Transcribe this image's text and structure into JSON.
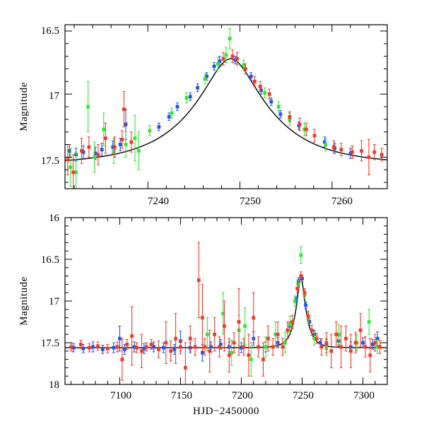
{
  "colors": {
    "blue": "#2255e6",
    "green": "#33e633",
    "red": "#f03a28",
    "model": "#000000",
    "axis": "#000000"
  },
  "chart_data": [
    {
      "id": "zoom",
      "type": "scatter",
      "title": "",
      "xlabel": "",
      "ylabel": "Magnitude",
      "xlim": [
        7231,
        7266
      ],
      "ylim": [
        17.75,
        16.45
      ],
      "x_major_ticks": [
        7240,
        7250,
        7260
      ],
      "x_tick_labels": [
        "7240",
        "7250",
        "7260"
      ],
      "x_minor_step": 2,
      "y_major_ticks": [
        16.5,
        17,
        17.5
      ],
      "y_tick_labels": [
        "16.5",
        "17",
        "17.5"
      ],
      "y_minor_step": 0.1,
      "grid": false,
      "model_curve": {
        "baseline": 17.56,
        "peak_mag": 16.72,
        "t0": 7249.0,
        "tE": 8.5,
        "u0": 0.3
      },
      "series": [
        {
          "name": "blue",
          "color_key": "blue",
          "points": [
            [
              7231.5,
              17.45,
              0.05
            ],
            [
              7232.2,
              17.48,
              0.05
            ],
            [
              7233.0,
              17.46,
              0.05
            ],
            [
              7234.3,
              17.47,
              0.05
            ],
            [
              7235.0,
              17.44,
              0.05
            ],
            [
              7236.2,
              17.42,
              0.05
            ],
            [
              7237.0,
              17.4,
              0.05
            ],
            [
              7237.6,
              17.24,
              0.12
            ],
            [
              7241.2,
              17.26,
              0.03
            ],
            [
              7242.3,
              17.18,
              0.03
            ],
            [
              7243.2,
              17.1,
              0.03
            ],
            [
              7244.6,
              17.02,
              0.03
            ],
            [
              7245.4,
              16.95,
              0.03
            ],
            [
              7246.4,
              16.86,
              0.03
            ],
            [
              7247.2,
              16.78,
              0.03
            ],
            [
              7247.8,
              16.74,
              0.04
            ],
            [
              7249.5,
              16.73,
              0.03
            ],
            [
              7251.2,
              16.86,
              0.03
            ],
            [
              7252.3,
              16.97,
              0.03
            ],
            [
              7253.4,
              17.06,
              0.03
            ],
            [
              7254.4,
              17.16,
              0.03
            ],
            [
              7256.4,
              17.25,
              0.03
            ],
            [
              7259.2,
              17.38,
              0.04
            ],
            [
              7260.3,
              17.43,
              0.04
            ],
            [
              7262.0,
              17.47,
              0.04
            ]
          ]
        },
        {
          "name": "green",
          "color_key": "green",
          "points": [
            [
              7231.6,
              17.58,
              0.15
            ],
            [
              7232.2,
              17.62,
              0.16
            ],
            [
              7233.5,
              17.1,
              0.2
            ],
            [
              7234.2,
              17.5,
              0.12
            ],
            [
              7235.2,
              17.28,
              0.13
            ],
            [
              7236.3,
              17.45,
              0.1
            ],
            [
              7237.6,
              17.4,
              0.1
            ],
            [
              7238.6,
              17.35,
              0.18
            ],
            [
              7239.0,
              17.45,
              0.15
            ],
            [
              7240.2,
              17.29,
              0.04
            ],
            [
              7242.6,
              17.15,
              0.04
            ],
            [
              7244.2,
              17.03,
              0.04
            ],
            [
              7246.2,
              16.88,
              0.04
            ],
            [
              7247.6,
              16.76,
              0.05
            ],
            [
              7248.5,
              16.69,
              0.06
            ],
            [
              7248.9,
              16.56,
              0.08
            ],
            [
              7250.4,
              16.77,
              0.04
            ],
            [
              7252.7,
              16.99,
              0.04
            ],
            [
              7254.2,
              17.1,
              0.04
            ],
            [
              7255.4,
              17.2,
              0.05
            ],
            [
              7257.0,
              17.28,
              0.05
            ],
            [
              7259.3,
              17.4,
              0.05
            ]
          ]
        },
        {
          "name": "red",
          "color_key": "red",
          "points": [
            [
              7231.3,
              17.52,
              0.12
            ],
            [
              7231.9,
              17.62,
              0.14
            ],
            [
              7232.8,
              17.45,
              0.1
            ],
            [
              7233.6,
              17.42,
              0.08
            ],
            [
              7234.6,
              17.48,
              0.08
            ],
            [
              7235.4,
              17.35,
              0.12
            ],
            [
              7236.4,
              17.42,
              0.08
            ],
            [
              7237.2,
              17.36,
              0.07
            ],
            [
              7237.4,
              17.12,
              0.14
            ],
            [
              7238.2,
              17.38,
              0.08
            ],
            [
              7248.2,
              16.72,
              0.05
            ],
            [
              7249.2,
              16.7,
              0.05
            ],
            [
              7249.7,
              16.72,
              0.05
            ],
            [
              7250.6,
              16.8,
              0.04
            ],
            [
              7251.6,
              16.9,
              0.04
            ],
            [
              7252.2,
              16.94,
              0.04
            ],
            [
              7253.2,
              17.0,
              0.04
            ],
            [
              7255.4,
              17.18,
              0.04
            ],
            [
              7256.5,
              17.24,
              0.05
            ],
            [
              7257.2,
              17.28,
              0.05
            ],
            [
              7258.1,
              17.33,
              0.05
            ],
            [
              7260.2,
              17.42,
              0.05
            ],
            [
              7261.0,
              17.44,
              0.05
            ],
            [
              7262.2,
              17.46,
              0.05
            ],
            [
              7263.2,
              17.45,
              0.08
            ],
            [
              7264.0,
              17.5,
              0.14
            ],
            [
              7264.6,
              17.46,
              0.06
            ],
            [
              7265.4,
              17.48,
              0.05
            ]
          ]
        }
      ]
    },
    {
      "id": "full",
      "type": "scatter",
      "title": "",
      "xlabel": "HJD−2450000",
      "ylabel": "Magnitude",
      "xlim": [
        7055,
        7320
      ],
      "ylim": [
        18.0,
        16.0
      ],
      "x_major_ticks": [
        7100,
        7150,
        7200,
        7250,
        7300
      ],
      "x_tick_labels": [
        "7100",
        "7150",
        "7200",
        "7250",
        "7300"
      ],
      "x_minor_step": 10,
      "y_major_ticks": [
        16,
        16.5,
        17,
        17.5,
        18
      ],
      "y_tick_labels": [
        "16",
        "16.5",
        "17",
        "17.5",
        "18"
      ],
      "y_minor_step": 0.1,
      "grid": false,
      "model_curve": {
        "baseline": 17.56,
        "peak_mag": 16.72,
        "t0": 7249.0,
        "tE": 8.5,
        "u0": 0.3
      },
      "series": [
        {
          "name": "blue",
          "color_key": "blue",
          "points": [
            [
              7062,
              17.56,
              0.05
            ],
            [
              7070,
              17.57,
              0.05
            ],
            [
              7078,
              17.55,
              0.06
            ],
            [
              7086,
              17.58,
              0.05
            ],
            [
              7095,
              17.56,
              0.06
            ],
            [
              7100,
              17.45,
              0.15
            ],
            [
              7104,
              17.58,
              0.06
            ],
            [
              7112,
              17.55,
              0.06
            ],
            [
              7120,
              17.57,
              0.06
            ],
            [
              7128,
              17.55,
              0.06
            ],
            [
              7136,
              17.56,
              0.06
            ],
            [
              7145,
              17.58,
              0.06
            ],
            [
              7150,
              17.48,
              0.12
            ],
            [
              7158,
              17.56,
              0.06
            ],
            [
              7168,
              17.62,
              0.1
            ],
            [
              7175,
              17.55,
              0.06
            ],
            [
              7183,
              17.52,
              0.06
            ],
            [
              7190,
              17.55,
              0.06
            ],
            [
              7200,
              17.56,
              0.06
            ],
            [
              7210,
              17.45,
              0.08
            ],
            [
              7220,
              17.55,
              0.06
            ],
            [
              7230,
              17.5,
              0.06
            ],
            [
              7240,
              17.3,
              0.05
            ],
            [
              7245,
              16.98,
              0.04
            ],
            [
              7247,
              16.76,
              0.04
            ],
            [
              7250,
              16.73,
              0.04
            ],
            [
              7253,
              17.05,
              0.04
            ],
            [
              7256,
              17.25,
              0.04
            ],
            [
              7260,
              17.4,
              0.05
            ],
            [
              7265,
              17.5,
              0.05
            ],
            [
              7270,
              17.52,
              0.06
            ],
            [
              7280,
              17.48,
              0.06
            ],
            [
              7290,
              17.55,
              0.06
            ],
            [
              7300,
              17.5,
              0.06
            ],
            [
              7308,
              17.52,
              0.06
            ],
            [
              7312,
              17.45,
              0.08
            ]
          ]
        },
        {
          "name": "green",
          "color_key": "green",
          "points": [
            [
              7172,
              17.4,
              0.2
            ],
            [
              7185,
              17.15,
              0.25
            ],
            [
              7192,
              17.62,
              0.15
            ],
            [
              7198,
              17.35,
              0.18
            ],
            [
              7203,
              17.3,
              0.22
            ],
            [
              7208,
              17.7,
              0.2
            ],
            [
              7220,
              17.55,
              0.12
            ],
            [
              7228,
              17.4,
              0.15
            ],
            [
              7236,
              17.5,
              0.12
            ],
            [
              7240,
              17.28,
              0.1
            ],
            [
              7244,
              17.0,
              0.06
            ],
            [
              7247,
              16.8,
              0.05
            ],
            [
              7249,
              16.45,
              0.1
            ],
            [
              7252,
              16.92,
              0.05
            ],
            [
              7255,
              17.2,
              0.06
            ],
            [
              7260,
              17.45,
              0.08
            ],
            [
              7270,
              17.55,
              0.1
            ],
            [
              7280,
              17.4,
              0.12
            ],
            [
              7295,
              17.5,
              0.1
            ],
            [
              7305,
              17.25,
              0.15
            ],
            [
              7312,
              17.55,
              0.08
            ]
          ]
        },
        {
          "name": "red",
          "color_key": "red",
          "points": [
            [
              7060,
              17.55,
              0.05
            ],
            [
              7068,
              17.52,
              0.05
            ],
            [
              7075,
              17.56,
              0.05
            ],
            [
              7082,
              17.54,
              0.05
            ],
            [
              7090,
              17.57,
              0.05
            ],
            [
              7098,
              17.55,
              0.06
            ],
            [
              7102,
              17.7,
              0.25
            ],
            [
              7106,
              17.52,
              0.06
            ],
            [
              7110,
              17.42,
              0.35
            ],
            [
              7114,
              17.56,
              0.06
            ],
            [
              7118,
              17.6,
              0.2
            ],
            [
              7122,
              17.55,
              0.05
            ],
            [
              7126,
              17.52,
              0.06
            ],
            [
              7132,
              17.58,
              0.1
            ],
            [
              7138,
              17.5,
              0.25
            ],
            [
              7142,
              17.6,
              0.12
            ],
            [
              7146,
              17.45,
              0.3
            ],
            [
              7150,
              17.55,
              0.08
            ],
            [
              7154,
              17.8,
              0.3
            ],
            [
              7158,
              17.45,
              0.15
            ],
            [
              7162,
              17.55,
              0.1
            ],
            [
              7165,
              16.75,
              0.45
            ],
            [
              7168,
              17.2,
              0.4
            ],
            [
              7170,
              17.55,
              0.1
            ],
            [
              7174,
              17.6,
              0.25
            ],
            [
              7178,
              17.4,
              0.2
            ],
            [
              7182,
              17.55,
              0.12
            ],
            [
              7186,
              17.3,
              0.3
            ],
            [
              7190,
              17.65,
              0.2
            ],
            [
              7194,
              17.5,
              0.12
            ],
            [
              7198,
              17.25,
              0.4
            ],
            [
              7202,
              17.55,
              0.1
            ],
            [
              7206,
              17.65,
              0.25
            ],
            [
              7210,
              17.2,
              0.3
            ],
            [
              7214,
              17.55,
              0.12
            ],
            [
              7218,
              17.7,
              0.2
            ],
            [
              7222,
              17.45,
              0.15
            ],
            [
              7226,
              17.55,
              0.1
            ],
            [
              7230,
              17.4,
              0.15
            ],
            [
              7234,
              17.55,
              0.1
            ],
            [
              7238,
              17.35,
              0.1
            ],
            [
              7242,
              17.25,
              0.08
            ],
            [
              7246,
              16.85,
              0.06
            ],
            [
              7249,
              16.7,
              0.05
            ],
            [
              7252,
              16.9,
              0.05
            ],
            [
              7255,
              17.18,
              0.06
            ],
            [
              7258,
              17.35,
              0.06
            ],
            [
              7262,
              17.45,
              0.06
            ],
            [
              7266,
              17.55,
              0.1
            ],
            [
              7270,
              17.5,
              0.12
            ],
            [
              7274,
              17.6,
              0.2
            ],
            [
              7278,
              17.4,
              0.15
            ],
            [
              7282,
              17.55,
              0.25
            ],
            [
              7286,
              17.45,
              0.15
            ],
            [
              7290,
              17.6,
              0.2
            ],
            [
              7294,
              17.5,
              0.12
            ],
            [
              7298,
              17.35,
              0.2
            ],
            [
              7302,
              17.55,
              0.12
            ],
            [
              7306,
              17.65,
              0.2
            ],
            [
              7310,
              17.5,
              0.1
            ],
            [
              7314,
              17.55,
              0.08
            ]
          ]
        }
      ]
    }
  ]
}
